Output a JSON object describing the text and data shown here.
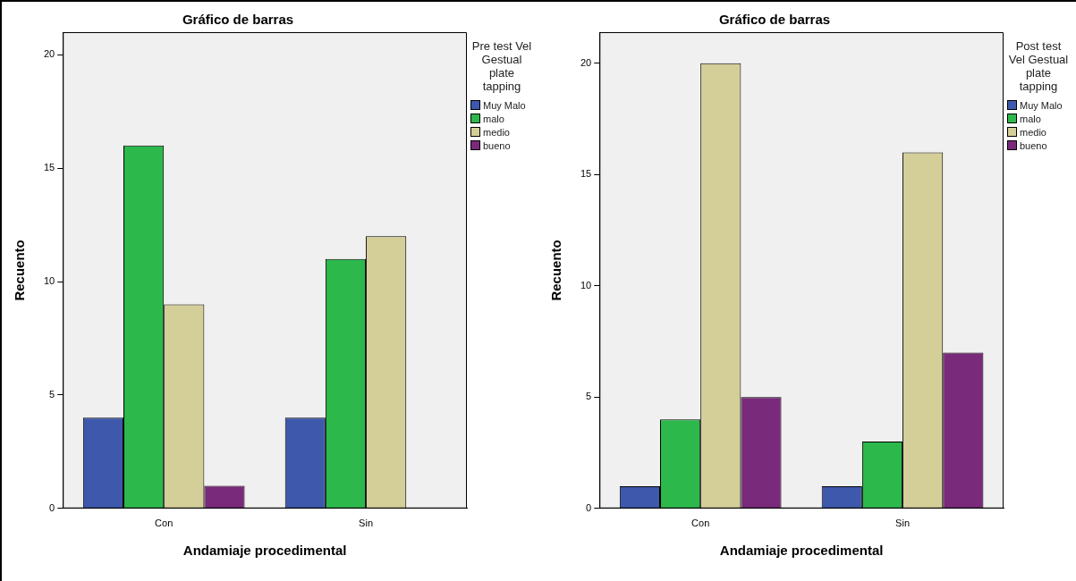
{
  "chart_data": [
    {
      "type": "bar",
      "title": "Gráfico de barras",
      "xlabel": "Andamiaje procedimental",
      "ylabel": "Recuento",
      "legend_title": "Pre test Vel Gestual plate tapping",
      "legend": "right",
      "grid": false,
      "categories": [
        "Con",
        "Sin"
      ],
      "ylim": [
        0,
        21
      ],
      "yticks": [
        0,
        5,
        10,
        15,
        20
      ],
      "series": [
        {
          "name": "Muy Malo",
          "color": "#3e58ac",
          "values": [
            4,
            4
          ]
        },
        {
          "name": "malo",
          "color": "#2db84b",
          "values": [
            16,
            11
          ]
        },
        {
          "name": "medio",
          "color": "#d4cf98",
          "values": [
            9,
            12
          ]
        },
        {
          "name": "bueno",
          "color": "#7a2a7a",
          "values": [
            1,
            null
          ]
        }
      ]
    },
    {
      "type": "bar",
      "title": "Gráfico de barras",
      "xlabel": "Andamiaje procedimental",
      "ylabel": "Recuento",
      "legend_title": "Post test Vel Gestual plate tapping",
      "legend": "right",
      "grid": false,
      "categories": [
        "Con",
        "Sin"
      ],
      "ylim": [
        0,
        21.4
      ],
      "yticks": [
        0,
        5,
        10,
        15,
        20
      ],
      "series": [
        {
          "name": "Muy Malo",
          "color": "#3e58ac",
          "values": [
            1,
            1
          ]
        },
        {
          "name": "malo",
          "color": "#2db84b",
          "values": [
            4,
            3
          ]
        },
        {
          "name": "medio",
          "color": "#d4cf98",
          "values": [
            20,
            16
          ]
        },
        {
          "name": "bueno",
          "color": "#7a2a7a",
          "values": [
            5,
            7
          ]
        }
      ]
    }
  ]
}
